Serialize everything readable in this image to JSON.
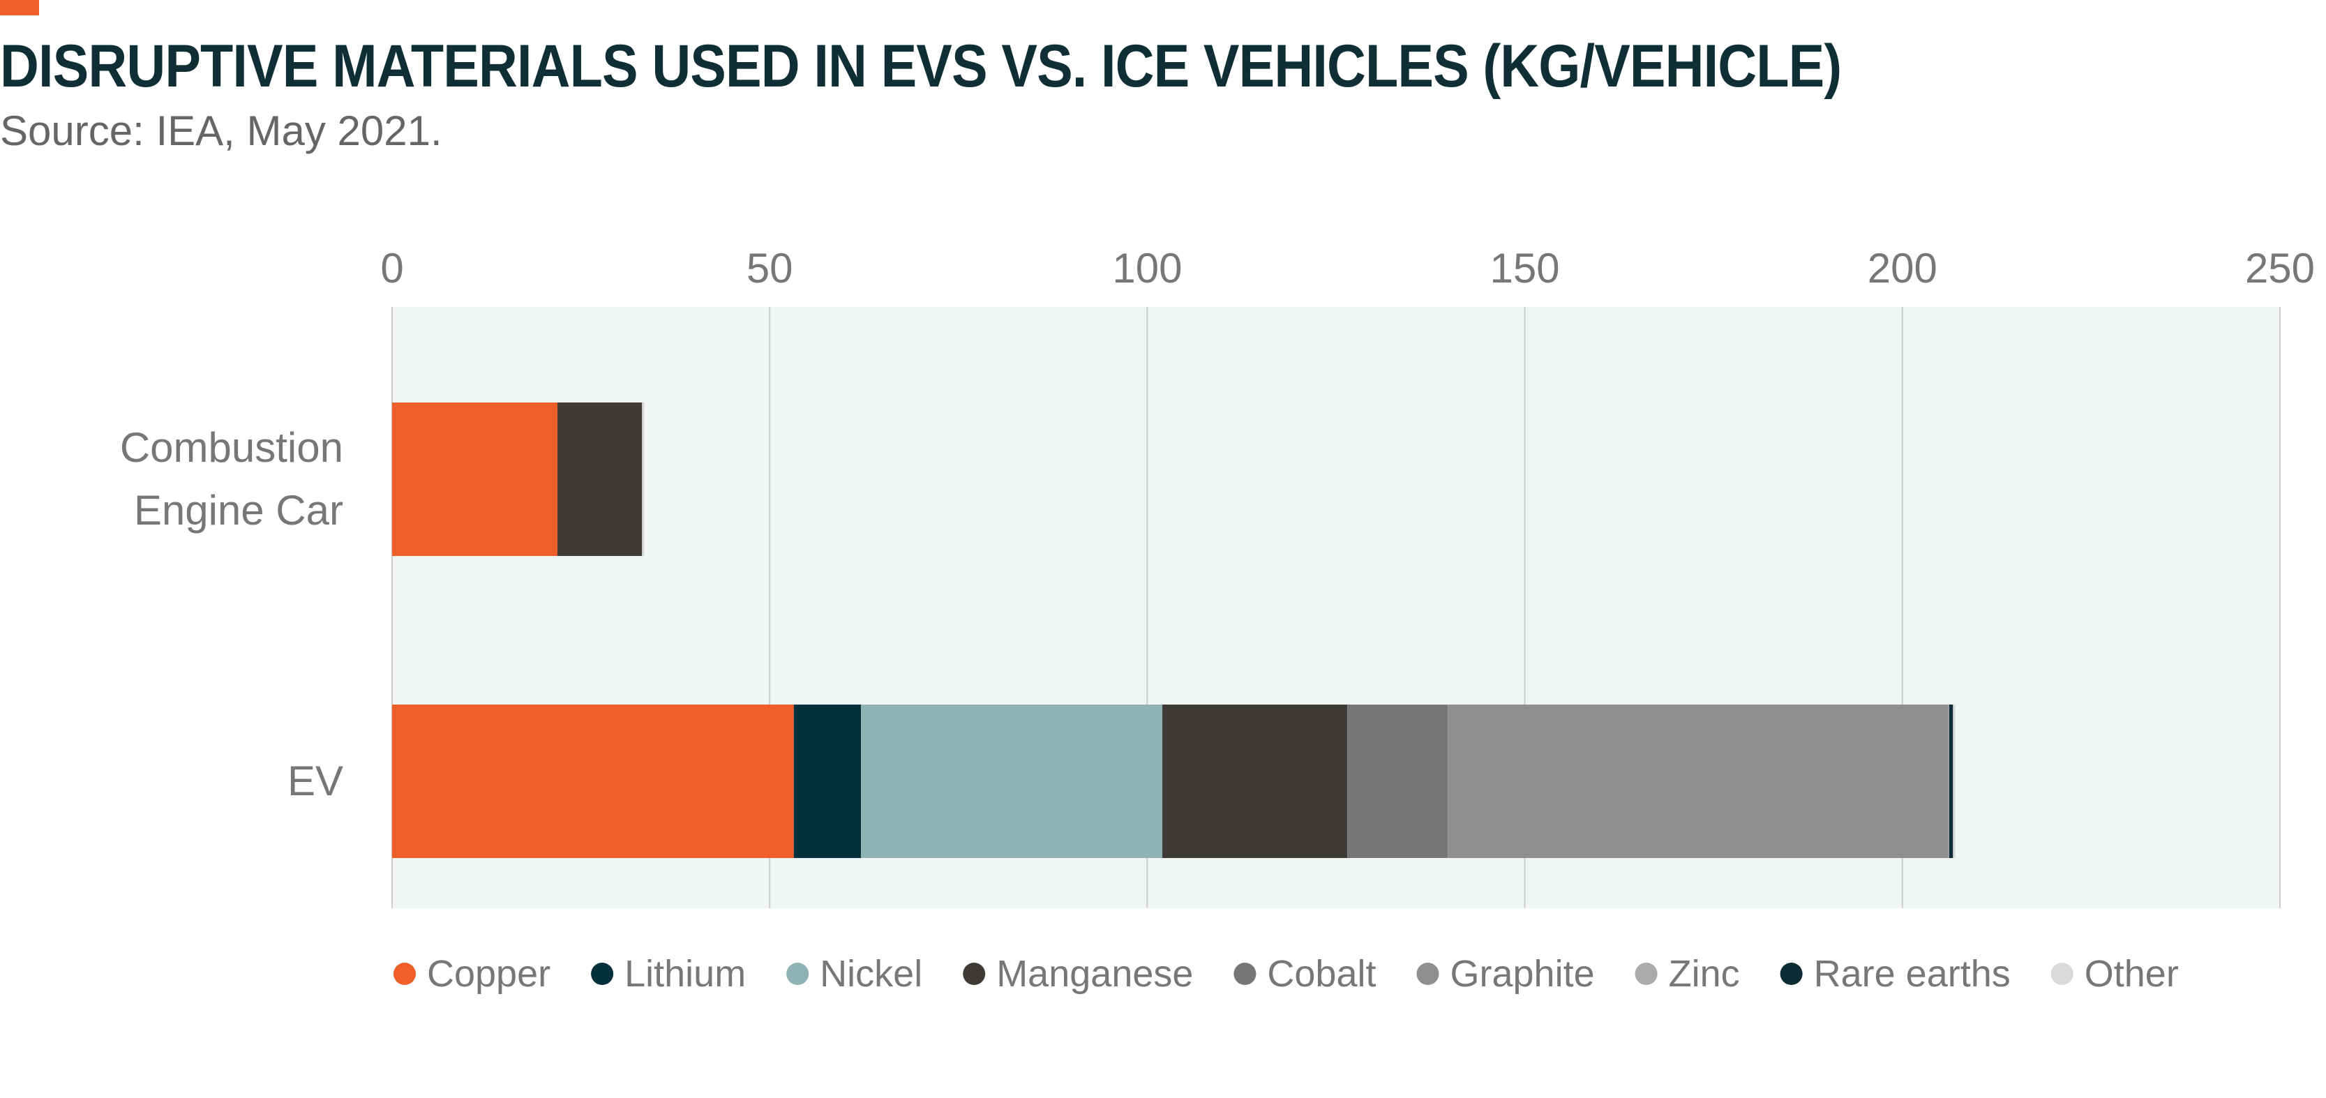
{
  "header": {
    "title": "DISRUPTIVE MATERIALS USED IN EVS VS. ICE VEHICLES (KG/VEHICLE)",
    "subtitle": "Source: IEA, May 2021."
  },
  "colors": {
    "accent": "#EE5F2C",
    "title": "#0F2E35",
    "plot_background": "#F2F5F5",
    "gridline": "#CCCCCC",
    "axis_text": "#777777"
  },
  "chart_data": {
    "type": "bar",
    "orientation": "horizontal",
    "stacked": true,
    "title": "DISRUPTIVE MATERIALS USED IN EVS VS. ICE VEHICLES (KG/VEHICLE)",
    "xlabel": "",
    "ylabel": "",
    "xlim": [
      0,
      250
    ],
    "x_ticks": [
      0,
      50,
      100,
      150,
      200,
      250
    ],
    "x_tick_labels": [
      "0",
      "50",
      "100",
      "150",
      "200",
      "250"
    ],
    "grid": true,
    "legend_position": "bottom",
    "categories": [
      {
        "lines": [
          "Combustion",
          "Engine Car"
        ]
      },
      {
        "lines": [
          "EV"
        ]
      }
    ],
    "series": [
      {
        "name": "Copper",
        "color": "#EE5F2C",
        "values": [
          21.9,
          53.2
        ]
      },
      {
        "name": "Lithium",
        "color": "#03303A",
        "values": [
          0,
          8.9
        ]
      },
      {
        "name": "Nickel",
        "color": "#8FB3B4",
        "values": [
          0,
          39.9
        ]
      },
      {
        "name": "Manganese",
        "color": "#3E3A36",
        "values": [
          11.2,
          24.5
        ]
      },
      {
        "name": "Cobalt",
        "color": "#767676",
        "values": [
          0,
          13.3
        ]
      },
      {
        "name": "Graphite",
        "color": "#8F8F8D",
        "values": [
          0,
          66.3
        ]
      },
      {
        "name": "Zinc",
        "color": "#AAAAAA",
        "values": [
          0,
          0.1
        ]
      },
      {
        "name": "Rare earths",
        "color": "#0C2D35",
        "values": [
          0,
          0.5
        ]
      },
      {
        "name": "Other",
        "color": "#D9D9D9",
        "values": [
          0.3,
          0.3
        ]
      }
    ]
  }
}
